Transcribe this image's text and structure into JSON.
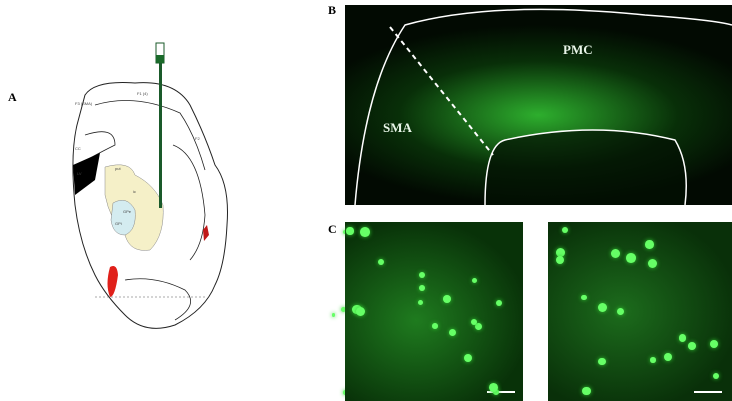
{
  "panels": {
    "a": {
      "label": "A",
      "atlas_labels": [
        "F3 (SMA)",
        "F1 (4)",
        "F2",
        "GPe",
        "GPi",
        "ic",
        "CC",
        "put",
        "LV"
      ]
    },
    "b": {
      "label": "B",
      "regions": [
        "PMC",
        "SMA"
      ]
    },
    "c": {
      "label": "C"
    }
  },
  "colors": {
    "fluorescence": "#3cff3c",
    "background": "#020802",
    "injection": "#e0201a",
    "caudate": "#f5f0c8",
    "pallidum": "#d4ecf0"
  }
}
